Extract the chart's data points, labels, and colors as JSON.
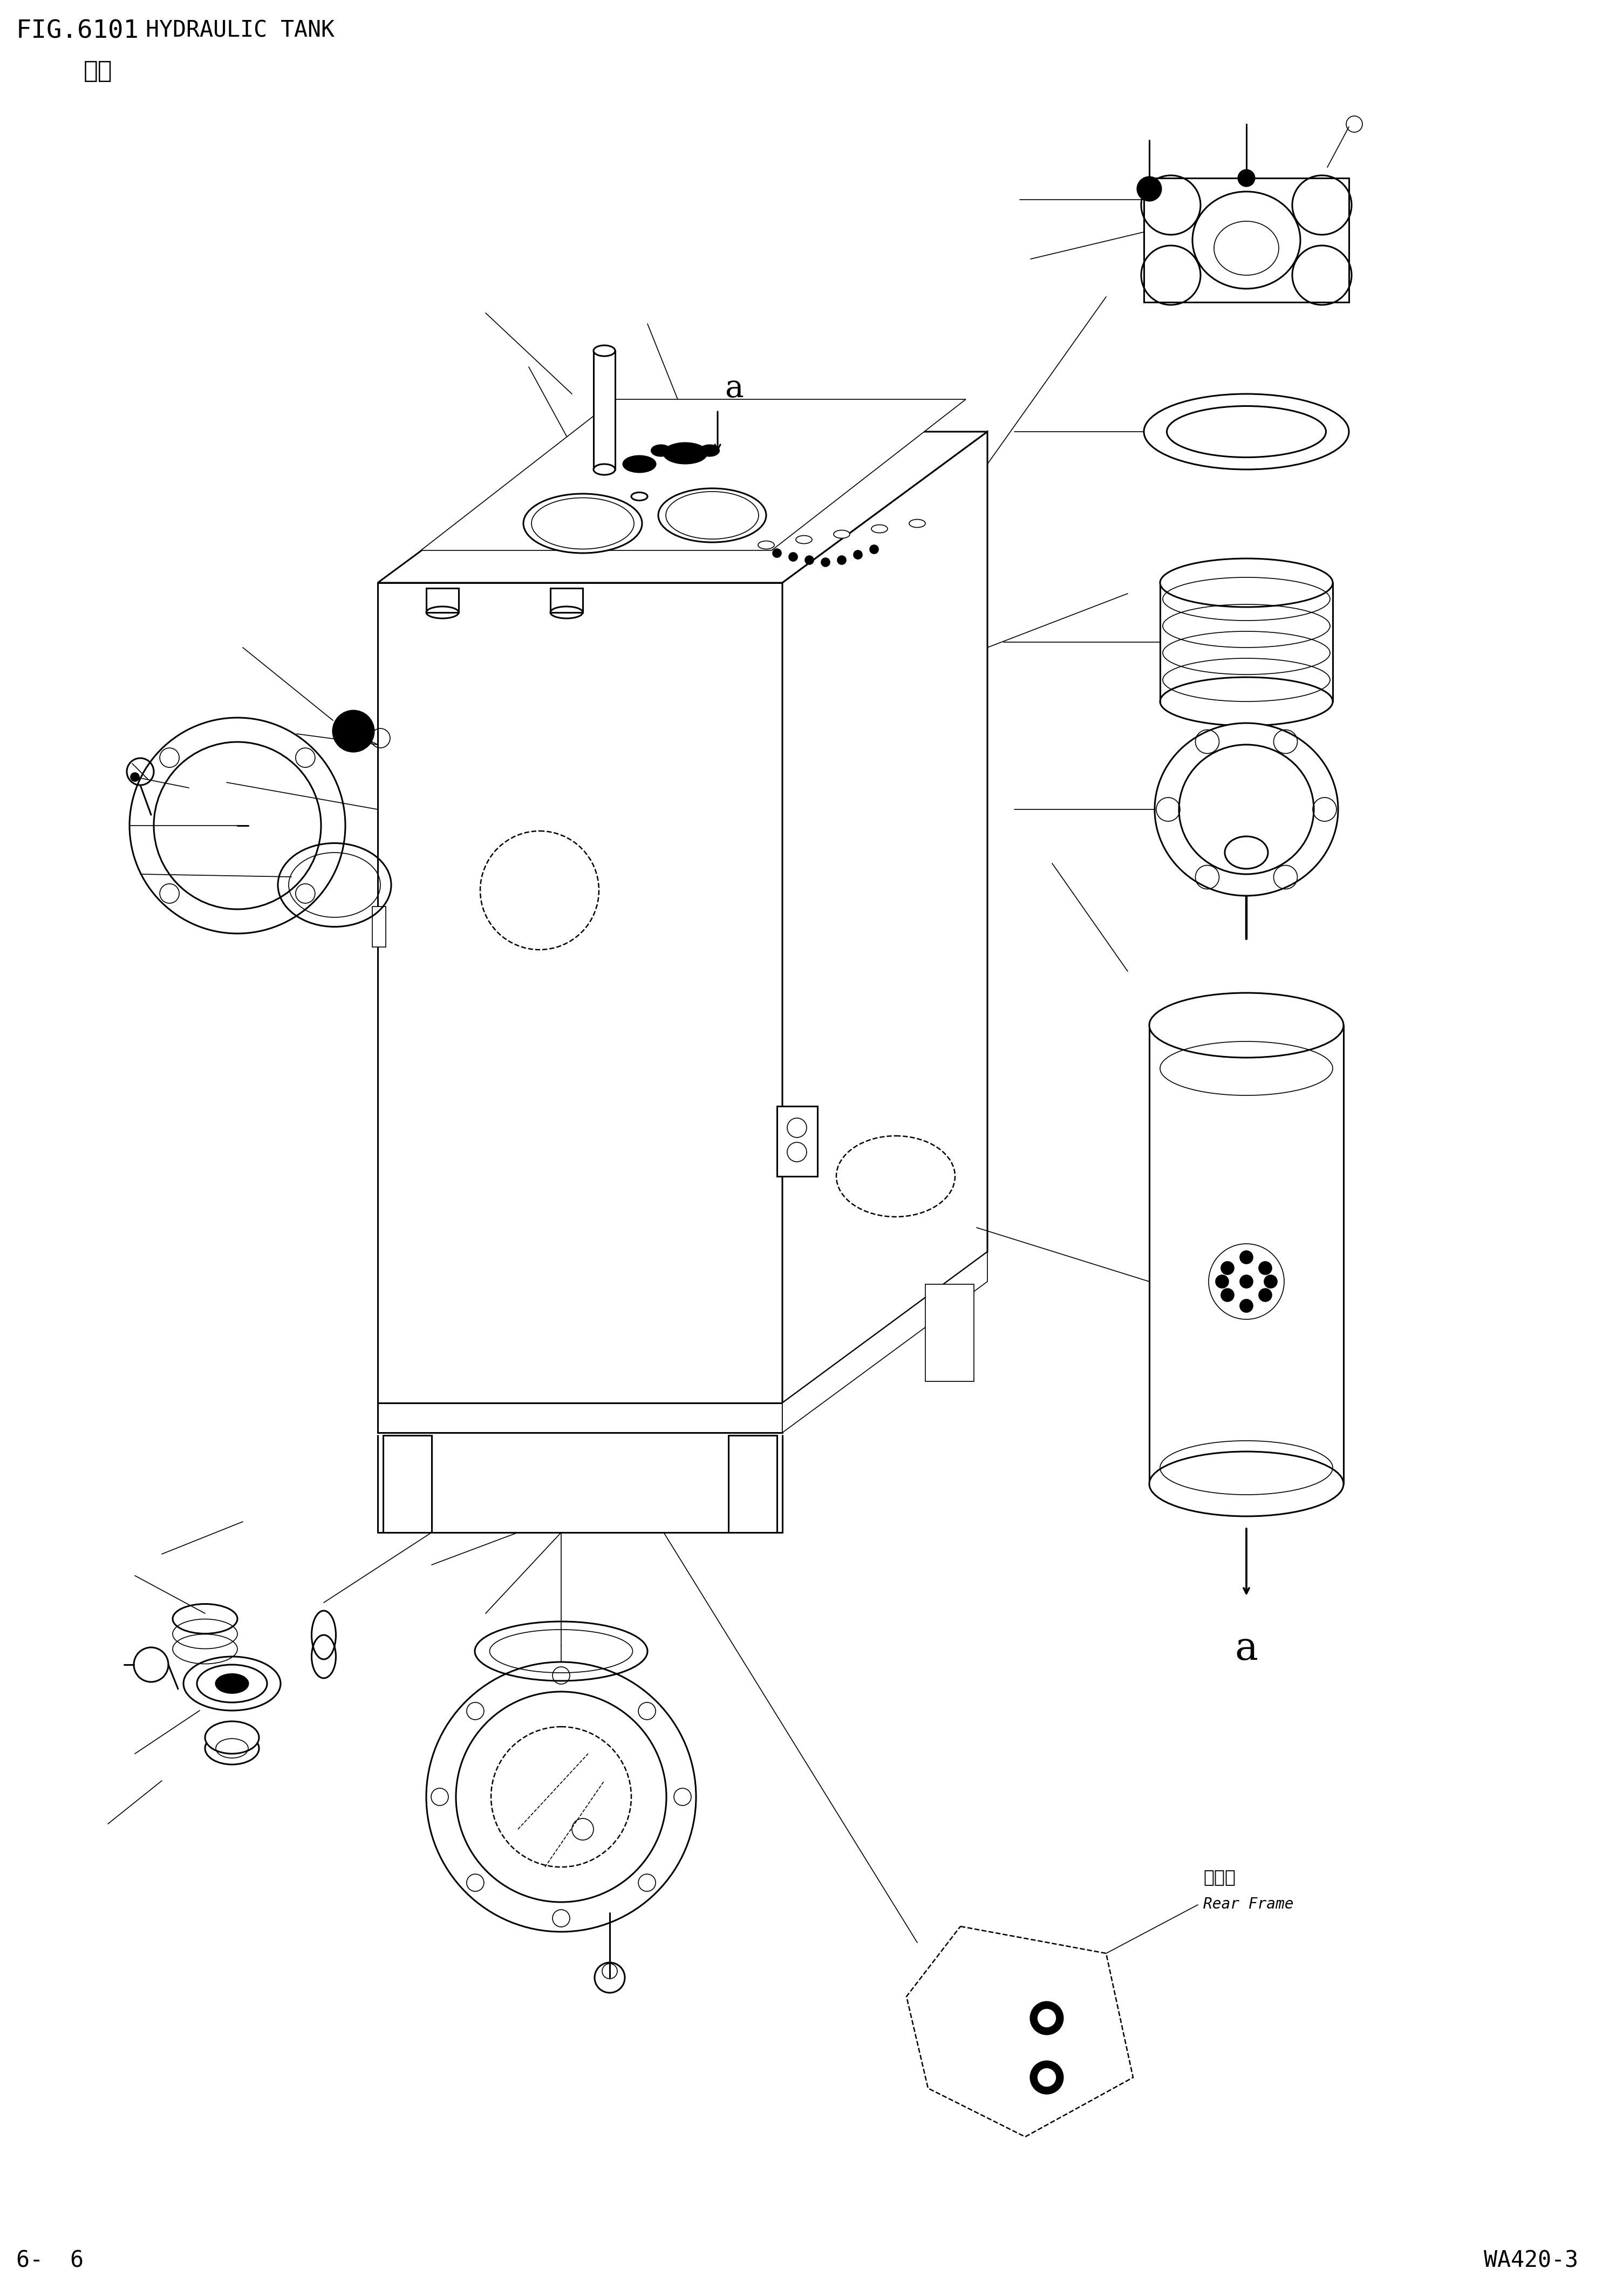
{
  "fig_number": "FIG.6101",
  "title_en": "HYDRAULIC TANK",
  "title_zh": "油筱",
  "page_left": "6-  6",
  "page_right": "WA420-3",
  "label_a": "a",
  "rear_frame_zh": "后车架",
  "rear_frame_en": "Rear Frame",
  "bg_color": "#ffffff",
  "line_color": "#000000",
  "lw_main": 2.2,
  "lw_thin": 1.2,
  "lw_thick": 3.0,
  "lw_dashed": 1.8
}
